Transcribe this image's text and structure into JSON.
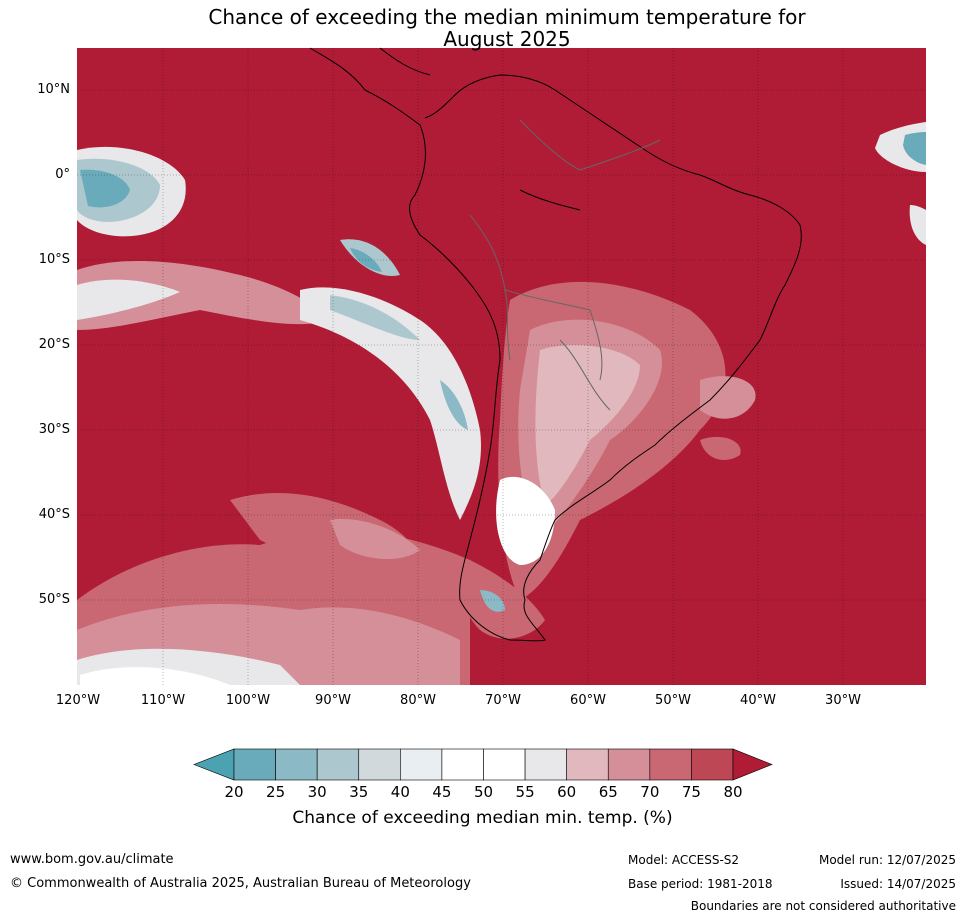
{
  "title": {
    "line1": "Chance of exceeding the median minimum temperature for",
    "line2": "August 2025"
  },
  "map": {
    "lat_labels": [
      "10°N",
      "0°",
      "10°S",
      "20°S",
      "30°S",
      "40°S",
      "50°S"
    ],
    "lon_labels": [
      "120°W",
      "110°W",
      "100°W",
      "90°W",
      "80°W",
      "70°W",
      "60°W",
      "50°W",
      "40°W",
      "30°W"
    ]
  },
  "colorbar": {
    "ticks": [
      "20",
      "25",
      "30",
      "35",
      "40",
      "45",
      "50",
      "55",
      "60",
      "65",
      "70",
      "75",
      "80"
    ],
    "colors": [
      "#4ba2b1",
      "#6aabbb",
      "#8bbac6",
      "#adc7ce",
      "#d1d9dc",
      "#e8eef1",
      "#ffffff",
      "#ffffff",
      "#e8e8ea",
      "#e0b8be",
      "#d58f98",
      "#c96872",
      "#bd4755",
      "#b01c36"
    ],
    "title": "Chance of exceeding median min. temp. (%)"
  },
  "footer": {
    "url": "www.bom.gov.au/climate",
    "copyright": "© Commonwealth of Australia 2025, Australian Bureau of Meteorology",
    "model": "Model: ACCESS-S2",
    "base_period": "Base period: 1981-2018",
    "model_run": "Model run: 12/07/2025",
    "issued": "Issued: 14/07/2025",
    "boundaries": "Boundaries are not considered authoritative"
  }
}
